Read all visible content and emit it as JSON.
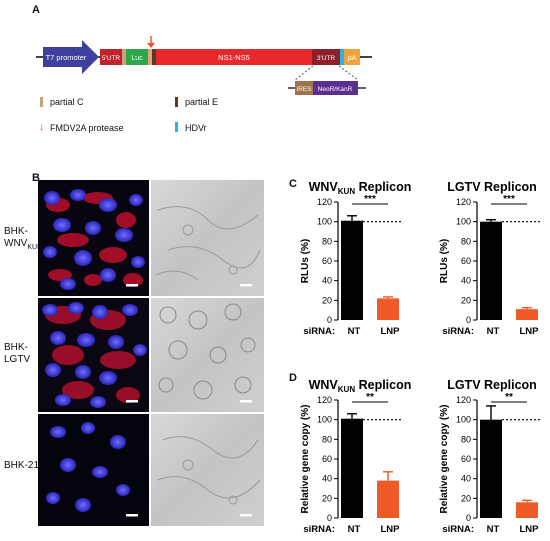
{
  "panel_a": {
    "letter": "A",
    "construct": {
      "t7": "T7 promoter",
      "utr5": "5'UTR",
      "luc": "Luc",
      "ns": "NS1-NS5",
      "utr3": "3'UTR",
      "pa": "pA",
      "ires": "IRES",
      "neo": "NeoR/KanR"
    },
    "legend": [
      {
        "label": "partial C",
        "color": "#c9a27a"
      },
      {
        "label": "partial E",
        "color": "#5a3a22"
      },
      {
        "label": "FMDV2A protease",
        "color": "#f0502a"
      },
      {
        "label": "HDVr",
        "color": "#29b2e6"
      }
    ]
  },
  "panel_b": {
    "letter": "B",
    "rows": [
      {
        "label_main": "BHK-",
        "label_line2": "WNV",
        "label_sub": "KUN"
      },
      {
        "label_main": "BHK-",
        "label_line2": "LGTV",
        "label_sub": ""
      },
      {
        "label_main": "BHK-21",
        "label_line2": "",
        "label_sub": ""
      }
    ]
  },
  "panel_c": {
    "letter": "C"
  },
  "panel_d": {
    "letter": "D"
  },
  "colors": {
    "nt": "#000000",
    "lnp": "#f05a28"
  },
  "chart_data": [
    {
      "type": "bar",
      "title_main": "WNV",
      "title_sub": "KUN",
      "title_rest": " Replicon",
      "ylabel": "RLUs (%)",
      "xprefix": "siRNA:",
      "categories": [
        "NT",
        "LNP"
      ],
      "values": [
        101,
        22
      ],
      "errors": [
        5,
        1.5
      ],
      "ylim": [
        0,
        120
      ],
      "yticks": [
        0,
        20,
        40,
        60,
        80,
        100,
        120
      ],
      "significance": "***"
    },
    {
      "type": "bar",
      "title_main": "LGTV Replicon",
      "title_sub": "",
      "title_rest": "",
      "ylabel": "RLUs (%)",
      "xprefix": "siRNA:",
      "categories": [
        "NT",
        "LNP"
      ],
      "values": [
        100,
        11
      ],
      "errors": [
        2,
        1.5
      ],
      "ylim": [
        0,
        120
      ],
      "yticks": [
        0,
        20,
        40,
        60,
        80,
        100,
        120
      ],
      "significance": "***"
    },
    {
      "type": "bar",
      "title_main": "WNV",
      "title_sub": "KUN",
      "title_rest": " Replicon",
      "ylabel": "Relative gene copy (%)",
      "xprefix": "siRNA:",
      "categories": [
        "NT",
        "LNP"
      ],
      "values": [
        101,
        38
      ],
      "errors": [
        5,
        9
      ],
      "ylim": [
        0,
        120
      ],
      "yticks": [
        0,
        20,
        40,
        60,
        80,
        100,
        120
      ],
      "significance": "**"
    },
    {
      "type": "bar",
      "title_main": "LGTV Replicon",
      "title_sub": "",
      "title_rest": "",
      "ylabel": "Relative gene copy (%)",
      "xprefix": "siRNA:",
      "categories": [
        "NT",
        "LNP"
      ],
      "values": [
        100,
        16
      ],
      "errors": [
        14,
        2
      ],
      "ylim": [
        0,
        120
      ],
      "yticks": [
        0,
        20,
        40,
        60,
        80,
        100,
        120
      ],
      "significance": "**"
    }
  ]
}
